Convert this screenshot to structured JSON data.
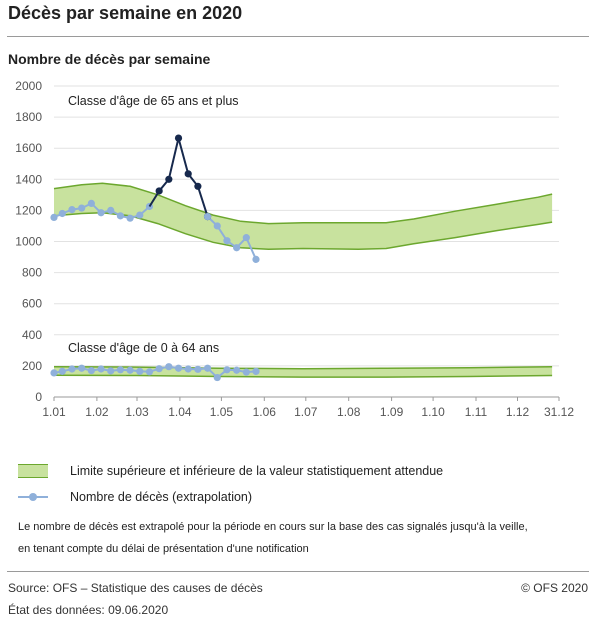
{
  "title": "Décès par semaine en 2020",
  "subtitle": "Nombre de décès par semaine",
  "legend": {
    "band": "Limite supérieure et inférieure de la valeur statistiquement attendue",
    "line": "Nombre de décès (extrapolation)"
  },
  "note": {
    "line1": "Le nombre de décès est extrapolé pour la période en cours sur la base des cas signalés jusqu'à la veille,",
    "line2": "en tenant compte du délai de présentation d'une notification"
  },
  "footer": {
    "source": "Source: OFS – Statistique des causes de décès",
    "copyright": "© OFS 2020",
    "date": "État des données: 09.06.2020"
  },
  "colors": {
    "band_fill": "#c8e29e",
    "band_stroke": "#6ca72e",
    "line_light": "#8fb0da",
    "line_dark": "#17294d",
    "grid": "#e2e2e2"
  },
  "chart_data": {
    "type": "line",
    "title": "Décès par semaine en 2020",
    "ylabel": "Nombre de décès par semaine",
    "xlabel": "",
    "x_range_days": [
      0,
      365
    ],
    "ylim": [
      0,
      2000
    ],
    "yticks": [
      0,
      200,
      400,
      600,
      800,
      1000,
      1200,
      1400,
      1600,
      1800,
      2000
    ],
    "xticks": [
      {
        "label": "1.01",
        "day": 0
      },
      {
        "label": "1.02",
        "day": 31
      },
      {
        "label": "1.03",
        "day": 60
      },
      {
        "label": "1.04",
        "day": 91
      },
      {
        "label": "1.05",
        "day": 121
      },
      {
        "label": "1.06",
        "day": 152
      },
      {
        "label": "1.07",
        "day": 182
      },
      {
        "label": "1.08",
        "day": 213
      },
      {
        "label": "1.09",
        "day": 244
      },
      {
        "label": "1.10",
        "day": 274
      },
      {
        "label": "1.11",
        "day": 305
      },
      {
        "label": "1.12",
        "day": 335
      },
      {
        "label": "31.12",
        "day": 365
      }
    ],
    "grid": true,
    "panels": [
      {
        "name": "Classe d'âge de 65 ans et plus",
        "band_upper": [
          [
            0,
            1340
          ],
          [
            20,
            1365
          ],
          [
            35,
            1375
          ],
          [
            55,
            1355
          ],
          [
            75,
            1300
          ],
          [
            95,
            1230
          ],
          [
            115,
            1170
          ],
          [
            135,
            1130
          ],
          [
            155,
            1115
          ],
          [
            180,
            1120
          ],
          [
            220,
            1120
          ],
          [
            240,
            1120
          ],
          [
            260,
            1145
          ],
          [
            290,
            1195
          ],
          [
            320,
            1240
          ],
          [
            350,
            1285
          ],
          [
            360,
            1305
          ]
        ],
        "band_lower": [
          [
            0,
            1165
          ],
          [
            20,
            1180
          ],
          [
            35,
            1185
          ],
          [
            55,
            1165
          ],
          [
            75,
            1115
          ],
          [
            95,
            1050
          ],
          [
            115,
            995
          ],
          [
            135,
            960
          ],
          [
            155,
            950
          ],
          [
            180,
            955
          ],
          [
            220,
            950
          ],
          [
            240,
            955
          ],
          [
            260,
            985
          ],
          [
            290,
            1025
          ],
          [
            320,
            1070
          ],
          [
            350,
            1110
          ],
          [
            360,
            1125
          ]
        ],
        "deaths_normal_before": [
          [
            0,
            1155
          ],
          [
            6,
            1180
          ],
          [
            13,
            1205
          ],
          [
            20,
            1215
          ],
          [
            27,
            1245
          ],
          [
            34,
            1185
          ],
          [
            41,
            1200
          ],
          [
            48,
            1165
          ],
          [
            55,
            1150
          ],
          [
            62,
            1170
          ],
          [
            69,
            1225
          ]
        ],
        "deaths_excess": [
          [
            69,
            1225
          ],
          [
            76,
            1325
          ],
          [
            83,
            1400
          ],
          [
            90,
            1665
          ],
          [
            97,
            1435
          ],
          [
            104,
            1355
          ],
          [
            111,
            1160
          ]
        ],
        "deaths_normal_after": [
          [
            111,
            1160
          ],
          [
            118,
            1100
          ],
          [
            125,
            1005
          ],
          [
            132,
            960
          ],
          [
            139,
            1025
          ],
          [
            146,
            885
          ]
        ]
      },
      {
        "name": "Classe d'âge de 0 à 64 ans",
        "band_upper": [
          [
            0,
            195
          ],
          [
            60,
            192
          ],
          [
            120,
            185
          ],
          [
            180,
            182
          ],
          [
            240,
            185
          ],
          [
            300,
            188
          ],
          [
            360,
            195
          ]
        ],
        "band_lower": [
          [
            0,
            140
          ],
          [
            60,
            138
          ],
          [
            120,
            132
          ],
          [
            180,
            128
          ],
          [
            240,
            128
          ],
          [
            300,
            132
          ],
          [
            360,
            138
          ]
        ],
        "deaths": [
          [
            0,
            155
          ],
          [
            6,
            165
          ],
          [
            13,
            180
          ],
          [
            20,
            185
          ],
          [
            27,
            170
          ],
          [
            34,
            180
          ],
          [
            41,
            168
          ],
          [
            48,
            175
          ],
          [
            55,
            172
          ],
          [
            62,
            165
          ],
          [
            69,
            162
          ],
          [
            76,
            182
          ],
          [
            83,
            195
          ],
          [
            90,
            185
          ],
          [
            97,
            180
          ],
          [
            104,
            178
          ],
          [
            111,
            185
          ],
          [
            118,
            125
          ],
          [
            125,
            175
          ],
          [
            132,
            172
          ],
          [
            139,
            160
          ],
          [
            146,
            165
          ]
        ]
      }
    ]
  }
}
